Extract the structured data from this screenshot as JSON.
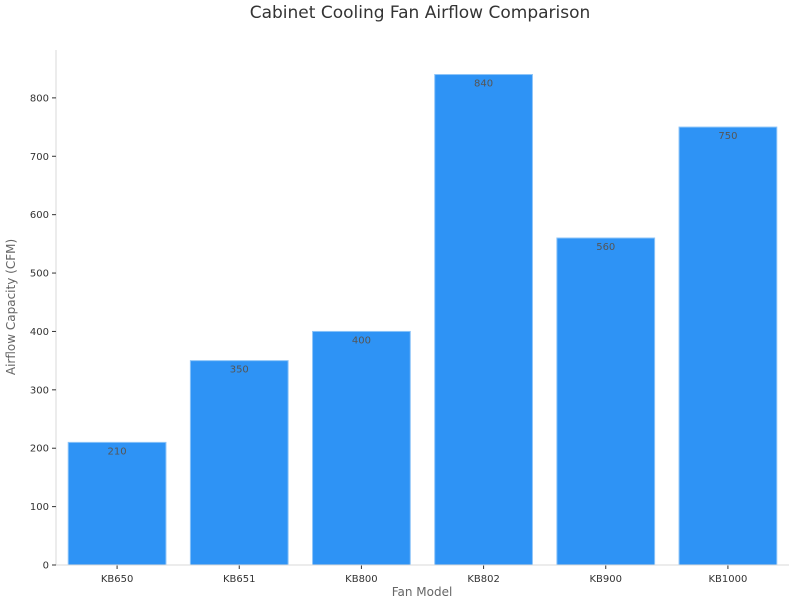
{
  "chart_data": {
    "type": "bar",
    "title": "Cabinet Cooling Fan Airflow Comparison",
    "xlabel": "Fan Model",
    "ylabel": "Airflow Capacity (CFM)",
    "categories": [
      "KB650",
      "KB651",
      "KB800",
      "KB802",
      "KB900",
      "KB1000"
    ],
    "values": [
      210,
      350,
      400,
      840,
      560,
      750
    ],
    "ylim": [
      0,
      882
    ],
    "yticks": [
      0,
      100,
      200,
      300,
      400,
      500,
      600,
      700,
      800
    ],
    "grid": false,
    "data_labels": true,
    "colors": {
      "bar": "#2E93F5",
      "bar_edge": "#8CC4F8",
      "axis": "#D9D9D9",
      "text": "#333333",
      "label": "#555555"
    }
  }
}
